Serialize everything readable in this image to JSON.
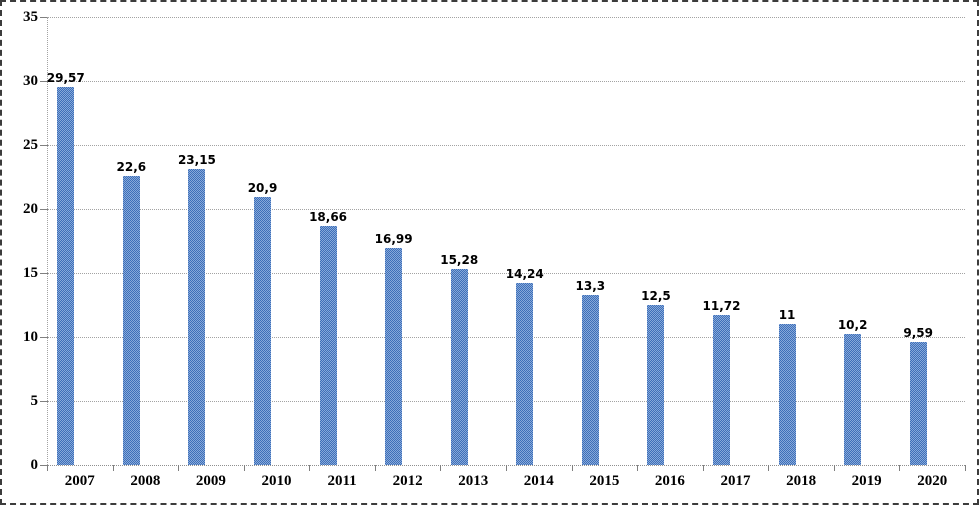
{
  "chart_data": {
    "type": "bar",
    "title": "",
    "xlabel": "",
    "ylabel": "",
    "categories": [
      "2007",
      "2008",
      "2009",
      "2010",
      "2011",
      "2012",
      "2013",
      "2014",
      "2015",
      "2016",
      "2017",
      "2018",
      "2019",
      "2020"
    ],
    "values": [
      29.57,
      22.6,
      23.15,
      20.9,
      18.66,
      16.99,
      15.28,
      14.24,
      13.3,
      12.5,
      11.72,
      11,
      10.2,
      9.59
    ],
    "value_labels": [
      "29,57",
      "22,6",
      "23,15",
      "20,9",
      "18,66",
      "16,99",
      "15,28",
      "14,24",
      "13,3",
      "12,5",
      "11,72",
      "11",
      "10,2",
      "9,59"
    ],
    "decimal_separator": ",",
    "ylim": [
      0,
      35
    ],
    "ytick_interval": 5,
    "ytick_labels": [
      "0",
      "5",
      "10",
      "15",
      "20",
      "25",
      "30",
      "35"
    ],
    "grid": true,
    "gridline_style": "dotted",
    "legend": "none",
    "bar_color": "#4f81bd",
    "bar_pattern_colors": [
      "#3e6fb8",
      "#87a9da"
    ],
    "gridline_color": "#a3a3a3",
    "axis_tick_color": "#7f7f7f",
    "text_color": "#000000",
    "frame_border_color": "#3c3c3c",
    "background_color": "#ffffff"
  }
}
